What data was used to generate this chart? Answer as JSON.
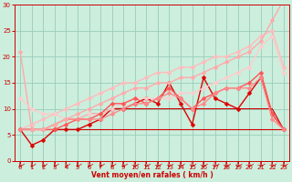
{
  "xlabel": "Vent moyen/en rafales ( km/h )",
  "xlim": [
    -0.5,
    23.5
  ],
  "ylim": [
    0,
    30
  ],
  "xticks": [
    0,
    1,
    2,
    3,
    4,
    5,
    6,
    7,
    8,
    9,
    10,
    11,
    12,
    13,
    14,
    15,
    16,
    17,
    18,
    19,
    20,
    21,
    22,
    23
  ],
  "yticks": [
    0,
    5,
    10,
    15,
    20,
    25,
    30
  ],
  "background_color": "#cceedd",
  "grid_color": "#99ccbb",
  "series": [
    {
      "y": [
        21,
        6,
        null,
        null,
        null,
        null,
        null,
        null,
        null,
        null,
        null,
        null,
        null,
        null,
        null,
        null,
        null,
        null,
        null,
        null,
        null,
        null,
        null,
        null
      ],
      "color": "#ffaaaa",
      "marker": "D",
      "markersize": 2.5,
      "linewidth": 1.0,
      "alpha": 1.0
    },
    {
      "y": [
        6,
        3,
        4,
        6,
        6,
        6,
        7,
        8,
        10,
        10,
        11,
        12,
        11,
        15,
        11,
        7,
        16,
        12,
        11,
        10,
        13,
        16,
        9,
        6
      ],
      "color": "#dd0000",
      "marker": "D",
      "markersize": 2.5,
      "linewidth": 1.0,
      "alpha": 1.0
    },
    {
      "y": [
        6,
        6,
        6,
        6,
        6,
        6,
        6,
        6,
        6,
        6,
        6,
        6,
        6,
        6,
        6,
        6,
        6,
        6,
        6,
        6,
        6,
        6,
        6,
        6
      ],
      "color": "#cc0000",
      "marker": null,
      "markersize": 0,
      "linewidth": 0.8,
      "alpha": 1.0
    },
    {
      "y": [
        6,
        6,
        6,
        7,
        8,
        8,
        9,
        9,
        10,
        10,
        10,
        10,
        10,
        10,
        10,
        10,
        10,
        10,
        10,
        10,
        10,
        10,
        10,
        6
      ],
      "color": "#cc0000",
      "marker": null,
      "markersize": 0,
      "linewidth": 0.8,
      "alpha": 1.0
    },
    {
      "y": [
        6,
        7,
        8,
        9,
        10,
        11,
        12,
        13,
        14,
        15,
        15,
        16,
        17,
        17,
        18,
        18,
        19,
        20,
        20,
        21,
        22,
        24,
        25,
        18
      ],
      "color": "#ffbbbb",
      "marker": "D",
      "markersize": 2.5,
      "linewidth": 1.0,
      "alpha": 1.0
    },
    {
      "y": [
        12,
        10,
        9,
        9,
        8,
        8,
        9,
        9,
        10,
        11,
        12,
        12,
        12,
        12,
        13,
        13,
        14,
        15,
        16,
        17,
        18,
        22,
        24,
        17
      ],
      "color": "#ffcccc",
      "marker": "D",
      "markersize": 2.5,
      "linewidth": 1.0,
      "alpha": 1.0
    },
    {
      "y": [
        6,
        6,
        6,
        6,
        7,
        8,
        8,
        9,
        11,
        11,
        12,
        11,
        12,
        14,
        12,
        10,
        12,
        13,
        14,
        14,
        15,
        17,
        9,
        6
      ],
      "color": "#ff5555",
      "marker": "D",
      "markersize": 2.5,
      "linewidth": 1.0,
      "alpha": 1.0
    },
    {
      "y": [
        6,
        6,
        6,
        7,
        8,
        8,
        8,
        8,
        9,
        10,
        11,
        11,
        12,
        13,
        12,
        10,
        11,
        13,
        14,
        14,
        14,
        16,
        8,
        6
      ],
      "color": "#ff8888",
      "marker": "D",
      "markersize": 2.5,
      "linewidth": 1.0,
      "alpha": 1.0
    },
    {
      "y": [
        null,
        6,
        6,
        7,
        8,
        9,
        10,
        11,
        12,
        13,
        14,
        14,
        15,
        15,
        16,
        16,
        17,
        18,
        19,
        20,
        21,
        23,
        27,
        31
      ],
      "color": "#ffaaaa",
      "marker": "D",
      "markersize": 2.5,
      "linewidth": 1.0,
      "alpha": 1.0
    }
  ]
}
